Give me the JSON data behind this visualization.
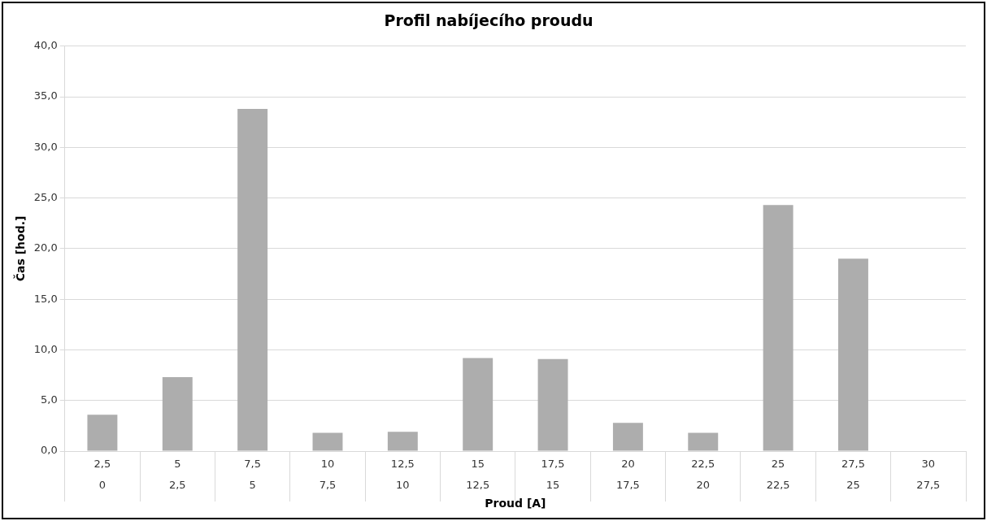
{
  "chart_data": {
    "type": "bar",
    "title": "Profil nabíjecího proudu",
    "xlabel": "Proud [A]",
    "ylabel": "Čas [hod.]",
    "categories": [
      "2,5\n0",
      "5\n2,5",
      "7,5\n5",
      "10\n7,5",
      "12,5\n10",
      "15\n12,5",
      "17,5\n15",
      "20\n17,5",
      "22,5\n20",
      "25\n22,5",
      "27,5\n25",
      "30\n27,5"
    ],
    "values": [
      3.6,
      7.3,
      33.8,
      1.8,
      1.9,
      9.2,
      9.1,
      2.8,
      1.8,
      24.3,
      19.0,
      0
    ],
    "color": "#adadad",
    "ylim": [
      0,
      40
    ],
    "yticks": [
      {
        "value": 0,
        "label": "0,0"
      },
      {
        "value": 5,
        "label": "5,0"
      },
      {
        "value": 10,
        "label": "10,0"
      },
      {
        "value": 15,
        "label": "15,0"
      },
      {
        "value": 20,
        "label": "20,0"
      },
      {
        "value": 25,
        "label": "25,0"
      },
      {
        "value": 30,
        "label": "30,0"
      },
      {
        "value": 35,
        "label": "35,0"
      },
      {
        "value": 40,
        "label": "40,0"
      }
    ],
    "grid": "y",
    "legend": false
  }
}
